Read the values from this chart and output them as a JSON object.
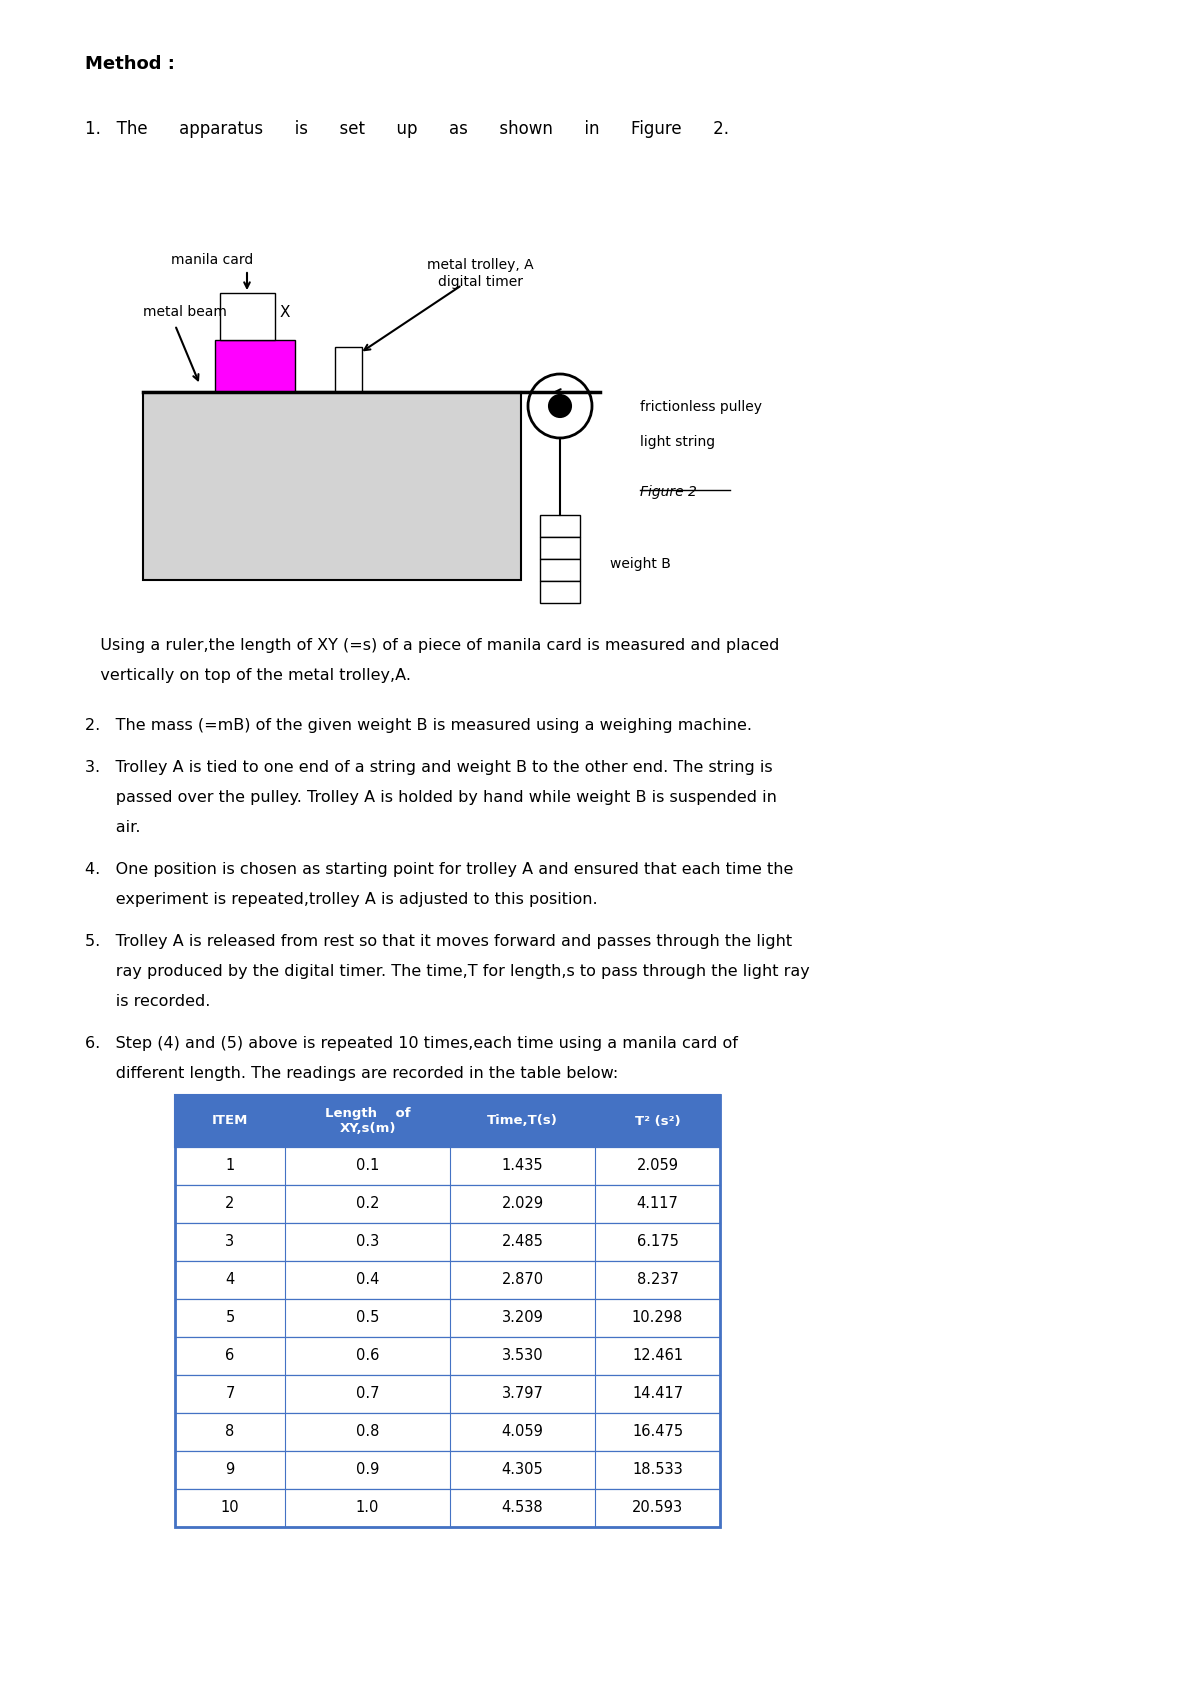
{
  "title": "Method :",
  "step1_spaced": "1.   The      apparatus      is      set      up      as      shown      in      Figure      2.",
  "step1_cont1": "   Using a ruler,the length of XY (=s) of a piece of manila card is measured and placed",
  "step1_cont2": "   vertically on top of the metal trolley,A.",
  "step2": "2.   The mass (=mB) of the given weight B is measured using a weighing machine.",
  "step3_line1": "3.   Trolley A is tied to one end of a string and weight B to the other end. The string is",
  "step3_line2": "      passed over the pulley. Trolley A is holded by hand while weight B is suspended in",
  "step3_line3": "      air.",
  "step4_line1": "4.   One position is chosen as starting point for trolley A and ensured that each time the",
  "step4_line2": "      experiment is repeated,trolley A is adjusted to this position.",
  "step5_line1": "5.   Trolley A is released from rest so that it moves forward and passes through the light",
  "step5_line2": "      ray produced by the digital timer. The time,T for length,s to pass through the light ray",
  "step5_line3": "      is recorded.",
  "step6_line1": "6.   Step (4) and (5) above is repeated 10 times,each time using a manila card of",
  "step6_line2": "      different length. The readings are recorded in the table below:",
  "table_data": [
    [
      "1",
      "0.1",
      "1.435",
      "2.059"
    ],
    [
      "2",
      "0.2",
      "2.029",
      "4.117"
    ],
    [
      "3",
      "0.3",
      "2.485",
      "6.175"
    ],
    [
      "4",
      "0.4",
      "2.870",
      "8.237"
    ],
    [
      "5",
      "0.5",
      "3.209",
      "10.298"
    ],
    [
      "6",
      "0.6",
      "3.530",
      "12.461"
    ],
    [
      "7",
      "0.7",
      "3.797",
      "14.417"
    ],
    [
      "8",
      "0.8",
      "4.059",
      "16.475"
    ],
    [
      "9",
      "0.9",
      "4.305",
      "18.533"
    ],
    [
      "10",
      "1.0",
      "4.538",
      "20.593"
    ]
  ],
  "table_header_bg": "#4472C4",
  "table_header_text": "#ffffff",
  "table_border_color": "#4472C4",
  "bg_color": "#ffffff",
  "text_color": "#000000",
  "magenta_color": "#FF00FF",
  "light_gray": "#d3d3d3",
  "diag": {
    "manila_card": "manila card",
    "metal_beam": "metal beam",
    "metal_trolley": "metal trolley, A",
    "digital_timer": "digital timer",
    "frictionless_pulley": "frictionless pulley",
    "light_string": "light string",
    "figure2": "Figure 2",
    "weight_b": "weight B",
    "X_label": "X"
  }
}
